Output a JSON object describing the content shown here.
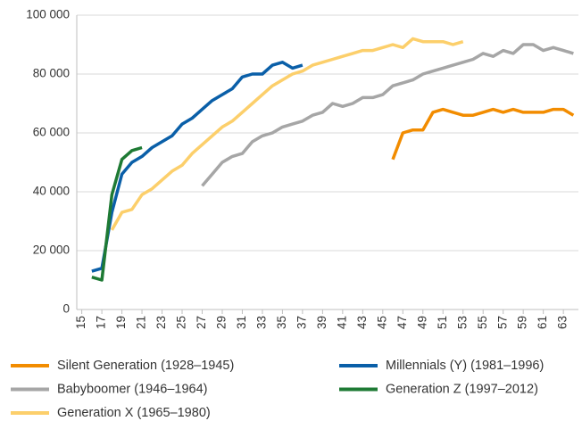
{
  "chart_data": {
    "type": "line",
    "x": [
      15,
      16,
      17,
      18,
      19,
      20,
      21,
      22,
      23,
      24,
      25,
      26,
      27,
      28,
      29,
      30,
      31,
      32,
      33,
      34,
      35,
      36,
      37,
      38,
      39,
      40,
      41,
      42,
      43,
      44,
      45,
      46,
      47,
      48,
      49,
      50,
      51,
      52,
      53,
      54,
      55,
      56,
      57,
      58,
      59,
      60,
      61,
      62,
      63,
      64
    ],
    "xlim": [
      14.5,
      64.5
    ],
    "xticks": [
      15,
      17,
      19,
      21,
      23,
      25,
      27,
      29,
      31,
      33,
      35,
      37,
      39,
      41,
      43,
      45,
      47,
      49,
      51,
      53,
      55,
      57,
      59,
      61,
      63
    ],
    "ylim": [
      0,
      100000
    ],
    "yticks": [
      0,
      {
        "value": 20000,
        "label": "20 000"
      },
      {
        "value": 40000,
        "label": "40 000"
      },
      {
        "value": 60000,
        "label": "60 000"
      },
      {
        "value": 80000,
        "label": "80 000"
      },
      {
        "value": 100000,
        "label": "100 000"
      }
    ],
    "grid": true,
    "series": [
      {
        "name": "Silent Generation (1928–1945)",
        "color": "#f28c00",
        "values": [
          null,
          null,
          null,
          null,
          null,
          null,
          null,
          null,
          null,
          null,
          null,
          null,
          null,
          null,
          null,
          null,
          null,
          null,
          null,
          null,
          null,
          null,
          null,
          null,
          null,
          null,
          null,
          null,
          null,
          null,
          null,
          51000,
          60000,
          61000,
          61000,
          67000,
          68000,
          67000,
          66000,
          66000,
          67000,
          68000,
          67000,
          68000,
          67000,
          67000,
          67000,
          68000,
          68000,
          66000
        ]
      },
      {
        "name": "Babyboomer (1946–1964)",
        "color": "#a6a6a6",
        "values": [
          null,
          null,
          null,
          null,
          null,
          null,
          null,
          null,
          null,
          null,
          null,
          null,
          42000,
          46000,
          50000,
          52000,
          53000,
          57000,
          59000,
          60000,
          62000,
          63000,
          64000,
          66000,
          67000,
          70000,
          69000,
          70000,
          72000,
          72000,
          73000,
          76000,
          77000,
          78000,
          80000,
          81000,
          82000,
          83000,
          84000,
          85000,
          87000,
          86000,
          88000,
          87000,
          90000,
          90000,
          88000,
          89000,
          88000,
          87000
        ]
      },
      {
        "name": "Generation X (1965–1980)",
        "color": "#fccf6b",
        "values": [
          null,
          null,
          null,
          27000,
          33000,
          34000,
          39000,
          41000,
          44000,
          47000,
          49000,
          53000,
          56000,
          59000,
          62000,
          64000,
          67000,
          70000,
          73000,
          76000,
          78000,
          80000,
          81000,
          83000,
          84000,
          85000,
          86000,
          87000,
          88000,
          88000,
          89000,
          90000,
          89000,
          92000,
          91000,
          91000,
          91000,
          90000,
          91000,
          null,
          null,
          null,
          null,
          null,
          null,
          null,
          null,
          null,
          null,
          null
        ]
      },
      {
        "name": "Millennials (Y) (1981–1996)",
        "color": "#0a5fa8",
        "values": [
          null,
          13000,
          14000,
          33000,
          46000,
          50000,
          52000,
          55000,
          57000,
          59000,
          63000,
          65000,
          68000,
          71000,
          73000,
          75000,
          79000,
          80000,
          80000,
          83000,
          84000,
          82000,
          83000,
          null,
          null,
          null,
          null,
          null,
          null,
          null,
          null,
          null,
          null,
          null,
          null,
          null,
          null,
          null,
          null,
          null,
          null,
          null,
          null,
          null,
          null,
          null,
          null,
          null,
          null,
          null
        ]
      },
      {
        "name": "Generation Z (1997–2012)",
        "color": "#1e7a34",
        "values": [
          null,
          11000,
          10000,
          39000,
          51000,
          54000,
          55000,
          null,
          null,
          null,
          null,
          null,
          null,
          null,
          null,
          null,
          null,
          null,
          null,
          null,
          null,
          null,
          null,
          null,
          null,
          null,
          null,
          null,
          null,
          null,
          null,
          null,
          null,
          null,
          null,
          null,
          null,
          null,
          null,
          null,
          null,
          null,
          null,
          null,
          null,
          null,
          null,
          null,
          null,
          null
        ]
      }
    ]
  }
}
